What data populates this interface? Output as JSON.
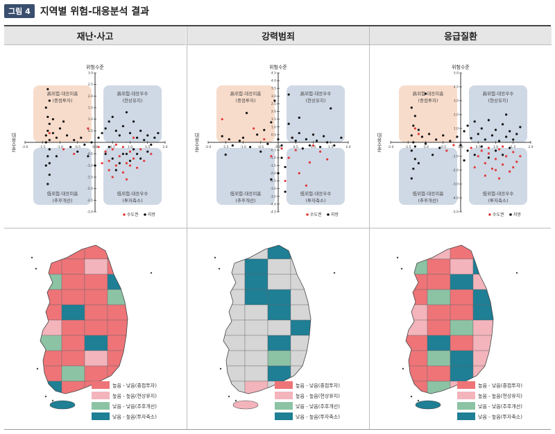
{
  "figure": {
    "badge": "그림 4",
    "title": "지역별 위험-대응분석 결과"
  },
  "quadrant_labels": {
    "tl": [
      "高위험-대응미흡",
      "(중점투자)"
    ],
    "tr": [
      "高위험-대응우수",
      "(현상유지)"
    ],
    "bl": [
      "低위험-대응미흡",
      "(추후개선)"
    ],
    "br": [
      "低위험-대응우수",
      "(투자축소)"
    ]
  },
  "axis_labels": {
    "y": "위험수준",
    "x": "대응수준"
  },
  "scatter_legend": [
    "수도권",
    "지방"
  ],
  "map_legend": {
    "labels": [
      "높음 - 낮음(중점투자)",
      "높음 - 높음(현상유지)",
      "낮음 - 낮음(추후개선)",
      "낮음 - 높음(투자축소)"
    ],
    "colors": [
      "#ee7478",
      "#f3b4bc",
      "#8cc3a4",
      "#1e7f95"
    ]
  },
  "colors": {
    "capital": "#e03a3a",
    "regional": "#111111",
    "quad_tl": "#f8dccb",
    "quad_other": "#cfd8e5"
  },
  "chart_data": [
    {
      "type": "scatter",
      "title": "재난·사고",
      "xlabel": "대응수준",
      "ylabel": "위험수준",
      "xlim": [
        -2,
        2
      ],
      "ylim": [
        -3,
        3
      ],
      "xticks": [
        -2.0,
        -1.5,
        -1.0,
        -0.5,
        0.0,
        0.5,
        1.0,
        1.5,
        2.0
      ],
      "yticks": [
        -3.0,
        -2.5,
        -2.0,
        -1.5,
        -1.0,
        -0.5,
        0.0,
        0.5,
        1.0,
        1.5,
        2.0,
        2.5,
        3.0
      ],
      "series": [
        {
          "name": "수도권",
          "points": [
            [
              -0.9,
              -0.3
            ],
            [
              -0.6,
              -0.5
            ],
            [
              -0.2,
              0.6
            ],
            [
              0.1,
              -0.2
            ],
            [
              0.3,
              -0.4
            ],
            [
              0.4,
              -0.8
            ],
            [
              0.5,
              -0.3
            ],
            [
              0.6,
              -1.0
            ],
            [
              0.7,
              -0.6
            ],
            [
              0.8,
              -0.2
            ],
            [
              0.9,
              -0.9
            ],
            [
              1.0,
              -0.4
            ],
            [
              1.1,
              -0.7
            ],
            [
              1.2,
              -1.1
            ],
            [
              1.3,
              -0.3
            ],
            [
              0.4,
              -1.2
            ],
            [
              0.6,
              -0.1
            ],
            [
              0.8,
              -1.3
            ],
            [
              1.0,
              -1.0
            ],
            [
              0.9,
              -1.6
            ],
            [
              1.4,
              -0.8
            ],
            [
              1.6,
              -0.5
            ],
            [
              0.2,
              -0.9
            ],
            [
              0.5,
              -1.5
            ],
            [
              -1.3,
              0.4
            ],
            [
              1.1,
              0.2
            ]
          ]
        },
        {
          "name": "지방",
          "points": [
            [
              -1.4,
              0.3
            ],
            [
              -1.35,
              0.5
            ],
            [
              -1.3,
              0.8
            ],
            [
              -1.3,
              0.1
            ],
            [
              -1.35,
              1.1
            ],
            [
              -1.4,
              1.5
            ],
            [
              -1.3,
              1.8
            ],
            [
              -1.35,
              2.3
            ],
            [
              -1.4,
              0.0
            ],
            [
              -1.3,
              -0.3
            ],
            [
              -1.35,
              -0.6
            ],
            [
              -1.4,
              -1.0
            ],
            [
              -1.3,
              -1.4
            ],
            [
              -1.35,
              -1.8
            ],
            [
              -1.3,
              -0.9
            ],
            [
              -1.2,
              0.4
            ],
            [
              -1.1,
              0.2
            ],
            [
              -1.0,
              0.6
            ],
            [
              -1.2,
              1.0
            ],
            [
              -0.8,
              0.3
            ],
            [
              -0.6,
              0.1
            ],
            [
              -0.4,
              0.2
            ],
            [
              -0.3,
              -0.1
            ],
            [
              -0.1,
              0.0
            ],
            [
              0.1,
              0.2
            ],
            [
              0.2,
              0.4
            ],
            [
              0.3,
              0.6
            ],
            [
              0.4,
              0.9
            ],
            [
              0.5,
              1.1
            ],
            [
              0.6,
              0.5
            ],
            [
              0.7,
              0.3
            ],
            [
              0.8,
              0.7
            ],
            [
              0.9,
              1.3
            ],
            [
              1.0,
              0.4
            ],
            [
              1.1,
              0.9
            ],
            [
              1.2,
              0.2
            ],
            [
              1.3,
              0.5
            ],
            [
              1.4,
              0.1
            ],
            [
              1.5,
              0.3
            ],
            [
              1.6,
              -0.1
            ],
            [
              1.7,
              0.2
            ],
            [
              0.3,
              -0.5
            ],
            [
              0.5,
              -0.7
            ],
            [
              0.7,
              -0.9
            ],
            [
              0.9,
              -0.5
            ],
            [
              1.1,
              -0.3
            ],
            [
              1.3,
              -0.7
            ],
            [
              1.5,
              -0.4
            ],
            [
              0.4,
              -0.2
            ],
            [
              0.6,
              -1.2
            ],
            [
              0.8,
              -0.5
            ],
            [
              1.0,
              -0.8
            ],
            [
              -0.5,
              -0.4
            ],
            [
              -0.2,
              -0.6
            ],
            [
              0.0,
              -1.0
            ],
            [
              1.2,
              -0.5
            ],
            [
              -0.9,
              0.9
            ],
            [
              -0.7,
              -0.2
            ],
            [
              1.8,
              0.4
            ],
            [
              -1.1,
              -0.6
            ]
          ]
        }
      ]
    },
    {
      "type": "scatter",
      "title": "강력범죄",
      "xlabel": "대응수준",
      "ylabel": "위험수준",
      "xlim": [
        -2,
        2
      ],
      "ylim": [
        -4.5,
        4.5
      ],
      "xticks": [
        -2.0,
        -1.5,
        -1.0,
        -0.5,
        0.0,
        0.5,
        1.0,
        1.5,
        2.0
      ],
      "yticks": [
        -4.5,
        -4.0,
        -3.5,
        -3.0,
        -2.5,
        -2.0,
        -1.5,
        -1.0,
        -0.5,
        0.0,
        0.5,
        1.0,
        1.5,
        2.0,
        2.5,
        3.0,
        3.5,
        4.0,
        4.5
      ],
      "series": [
        {
          "name": "수도권",
          "points": [
            [
              -1.6,
              1.5
            ],
            [
              -0.7,
              0.9
            ],
            [
              -0.4,
              0.2
            ],
            [
              0.1,
              -0.4
            ],
            [
              0.3,
              -1.0
            ],
            [
              0.5,
              -0.5
            ],
            [
              0.6,
              -2.0
            ],
            [
              0.9,
              -1.3
            ],
            [
              1.2,
              -0.6
            ],
            [
              1.4,
              -1.1
            ],
            [
              0.2,
              -2.5
            ],
            [
              0.8,
              -2.8
            ],
            [
              -0.2,
              -0.9
            ],
            [
              0.4,
              0.3
            ],
            [
              1.0,
              -0.2
            ]
          ]
        },
        {
          "name": "지방",
          "points": [
            [
              -1.6,
              0.4
            ],
            [
              -1.4,
              0.2
            ],
            [
              -1.3,
              -0.2
            ],
            [
              -1.1,
              0.1
            ],
            [
              -1.0,
              0.3
            ],
            [
              -0.8,
              -0.3
            ],
            [
              -0.6,
              0.5
            ],
            [
              -0.4,
              0.8
            ],
            [
              -0.3,
              -0.1
            ],
            [
              -0.2,
              1.3
            ],
            [
              -0.1,
              2.7
            ],
            [
              0.0,
              0.2
            ],
            [
              0.1,
              -0.2
            ],
            [
              0.1,
              -1.0
            ],
            [
              0.2,
              -1.6
            ],
            [
              0.3,
              1.2
            ],
            [
              0.4,
              0.3
            ],
            [
              0.5,
              0.1
            ],
            [
              0.6,
              0.6
            ],
            [
              0.7,
              -0.4
            ],
            [
              0.8,
              0.2
            ],
            [
              0.9,
              -0.2
            ],
            [
              1.0,
              0.5
            ],
            [
              1.1,
              0.1
            ],
            [
              1.2,
              -0.3
            ],
            [
              1.3,
              0.4
            ],
            [
              1.4,
              0.0
            ],
            [
              1.5,
              2.2
            ],
            [
              1.6,
              -0.2
            ],
            [
              0.3,
              3.1
            ],
            [
              -0.5,
              -0.6
            ],
            [
              0.0,
              -2.0
            ],
            [
              0.2,
              -3.2
            ],
            [
              -0.2,
              -2.4
            ],
            [
              1.8,
              0.3
            ],
            [
              -1.5,
              -0.8
            ],
            [
              -0.9,
              1.9
            ],
            [
              0.6,
              1.6
            ]
          ]
        }
      ]
    },
    {
      "type": "scatter",
      "title": "응급질환",
      "xlabel": "대응수준",
      "ylabel": "위험수준",
      "xlim": [
        -2,
        2
      ],
      "ylim": [
        -5,
        5
      ],
      "xticks": [
        -2.0,
        -1.5,
        -1.0,
        -0.5,
        0.0,
        0.5,
        1.0,
        1.5,
        2.0
      ],
      "yticks": [
        -5.0,
        -4.0,
        -3.0,
        -2.0,
        -1.0,
        0.0,
        1.0,
        2.0,
        3.0,
        4.0,
        5.0
      ],
      "series": [
        {
          "name": "수도권",
          "points": [
            [
              -1.3,
              1.0
            ],
            [
              -1.2,
              0.6
            ],
            [
              0.3,
              -0.4
            ],
            [
              0.5,
              -1.0
            ],
            [
              0.6,
              -0.6
            ],
            [
              0.7,
              -1.5
            ],
            [
              0.8,
              -0.8
            ],
            [
              0.9,
              -1.9
            ],
            [
              1.0,
              -1.2
            ],
            [
              1.1,
              -0.5
            ],
            [
              1.2,
              -1.6
            ],
            [
              1.3,
              -1.0
            ],
            [
              1.4,
              -2.1
            ],
            [
              1.5,
              -0.7
            ],
            [
              1.6,
              -1.4
            ],
            [
              0.7,
              -2.4
            ],
            [
              1.0,
              -2.0
            ],
            [
              1.2,
              -0.3
            ],
            [
              0.8,
              -0.4
            ],
            [
              1.7,
              -1.0
            ],
            [
              0.4,
              -1.8
            ],
            [
              1.1,
              -2.6
            ],
            [
              -0.4,
              -0.6
            ],
            [
              -0.2,
              -0.2
            ],
            [
              1.5,
              -1.8
            ]
          ]
        },
        {
          "name": "지방",
          "points": [
            [
              -1.4,
              0.5
            ],
            [
              -1.35,
              1.2
            ],
            [
              -1.3,
              1.9
            ],
            [
              -1.4,
              2.5
            ],
            [
              -1.35,
              0.0
            ],
            [
              -1.4,
              -0.6
            ],
            [
              -1.3,
              -1.2
            ],
            [
              -1.35,
              -1.9
            ],
            [
              -1.4,
              -2.6
            ],
            [
              -1.3,
              -0.3
            ],
            [
              -1.2,
              0.9
            ],
            [
              -1.1,
              0.4
            ],
            [
              -1.0,
              -0.1
            ],
            [
              -0.9,
              0.6
            ],
            [
              -0.7,
              0.2
            ],
            [
              -0.5,
              0.5
            ],
            [
              -0.3,
              0.1
            ],
            [
              -0.1,
              0.4
            ],
            [
              0.0,
              -0.2
            ],
            [
              0.1,
              0.8
            ],
            [
              0.2,
              1.2
            ],
            [
              0.3,
              0.3
            ],
            [
              0.4,
              1.5
            ],
            [
              0.5,
              0.6
            ],
            [
              0.6,
              1.0
            ],
            [
              0.7,
              0.2
            ],
            [
              0.8,
              1.6
            ],
            [
              0.9,
              0.5
            ],
            [
              1.0,
              0.9
            ],
            [
              1.1,
              0.1
            ],
            [
              1.2,
              1.3
            ],
            [
              1.3,
              0.4
            ],
            [
              1.4,
              0.8
            ],
            [
              1.5,
              0.2
            ],
            [
              1.6,
              0.6
            ],
            [
              1.7,
              1.1
            ],
            [
              0.2,
              -0.6
            ],
            [
              0.4,
              -0.9
            ],
            [
              0.6,
              -0.3
            ],
            [
              0.8,
              -1.1
            ],
            [
              1.0,
              -0.6
            ],
            [
              1.2,
              -0.9
            ],
            [
              1.4,
              -0.4
            ],
            [
              -0.6,
              -0.4
            ],
            [
              -0.8,
              -0.9
            ],
            [
              0.1,
              -1.3
            ],
            [
              -1.2,
              -1.5
            ],
            [
              -1.0,
              3.5
            ],
            [
              1.3,
              2.0
            ]
          ]
        }
      ]
    }
  ]
}
